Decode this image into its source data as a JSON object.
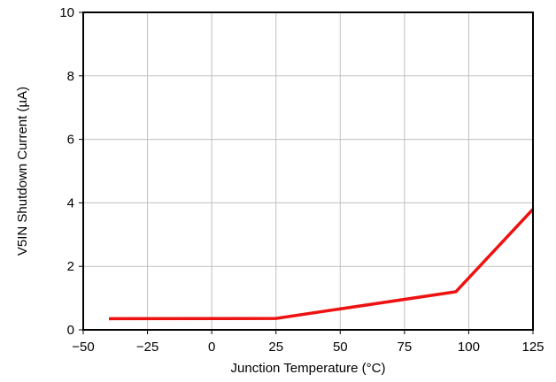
{
  "chart_data": {
    "type": "line",
    "title": "",
    "xlabel": "Junction Temperature (°C)",
    "ylabel": "V5IN Shutdown Current (µA)",
    "xlim": [
      -50,
      125
    ],
    "ylim": [
      0,
      10
    ],
    "x_ticks": [
      -50,
      -25,
      0,
      25,
      50,
      75,
      100,
      125
    ],
    "x_tick_labels": [
      "−50",
      "−25",
      "0",
      "25",
      "50",
      "75",
      "100",
      "125"
    ],
    "y_ticks": [
      0,
      2,
      4,
      6,
      8,
      10
    ],
    "y_tick_labels": [
      "0",
      "2",
      "4",
      "6",
      "8",
      "10"
    ],
    "grid": true,
    "legend": "none",
    "series": [
      {
        "color": "#ee1111",
        "x": [
          -40,
          25,
          95,
          125
        ],
        "y": [
          0.35,
          0.36,
          1.2,
          3.8
        ]
      }
    ]
  }
}
